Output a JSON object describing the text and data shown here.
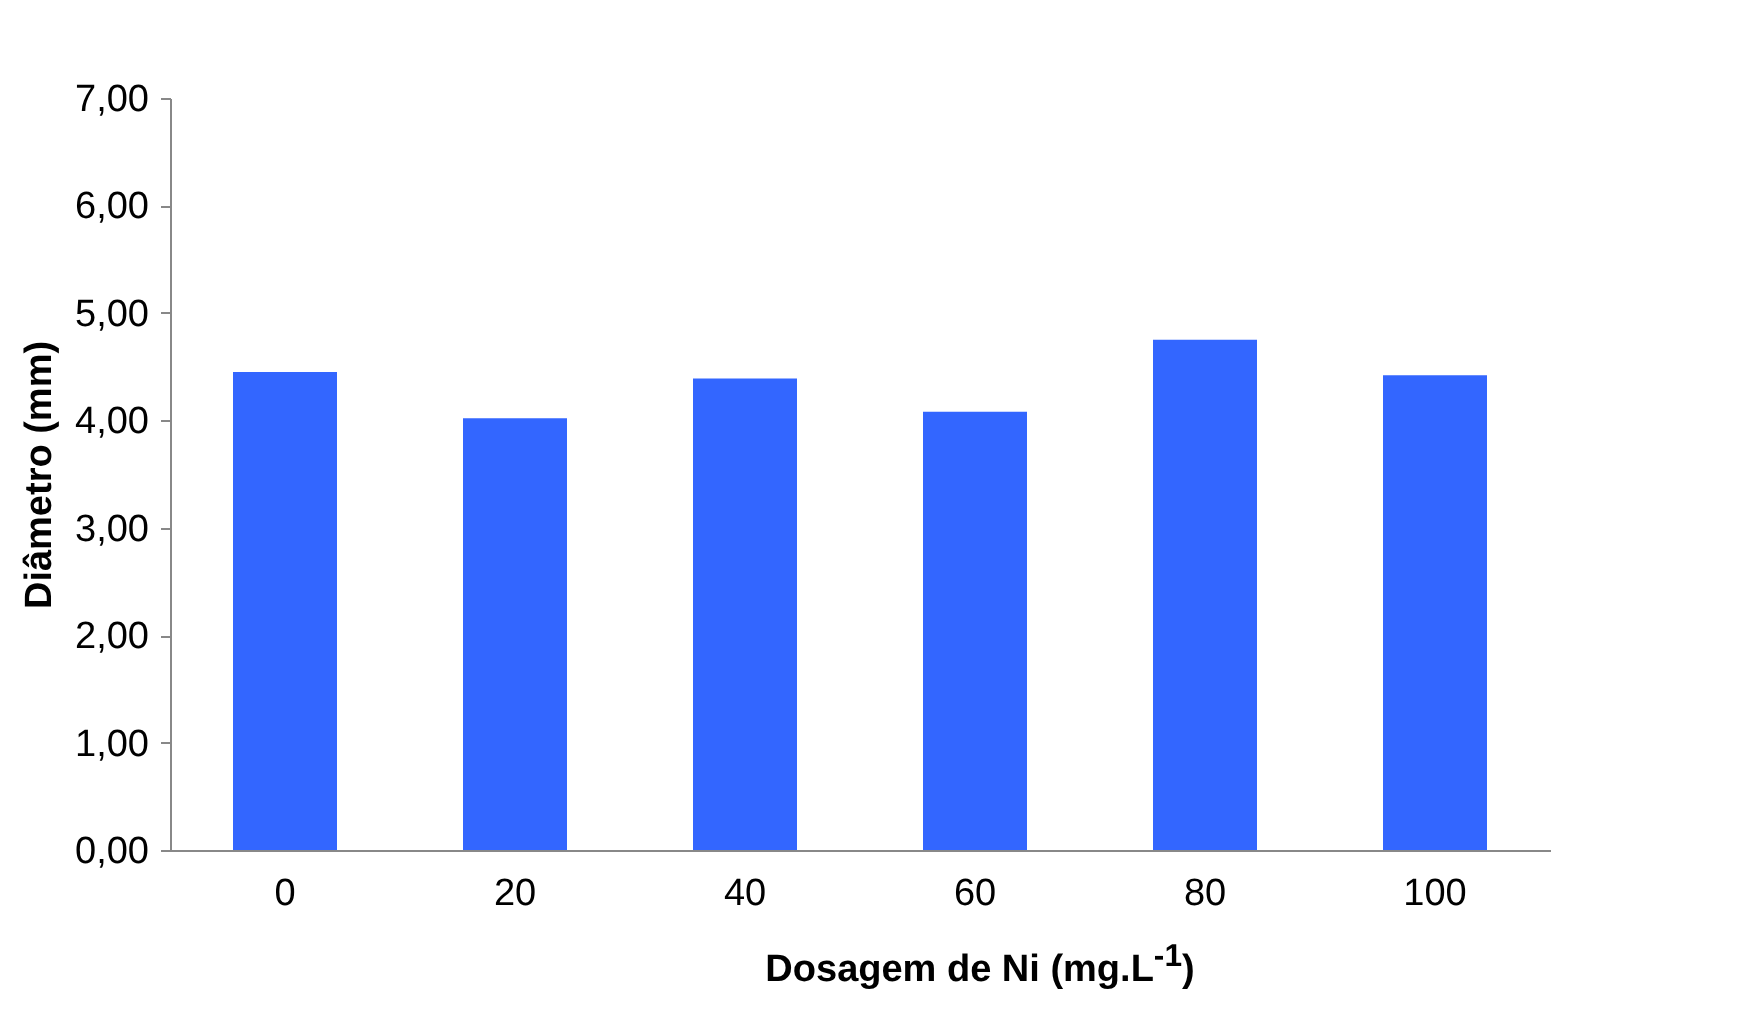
{
  "chart_data": {
    "type": "bar",
    "xlabel": "Dosagem de Ni (mg.L$^{-1}$)",
    "ylabel": "Diâmetro (mm)",
    "categories": [
      "0",
      "20",
      "40",
      "60",
      "80",
      "100"
    ],
    "values": [
      4.45,
      4.02,
      4.39,
      4.08,
      4.75,
      4.42
    ],
    "color": "#3366ff",
    "ylim": [
      0,
      7
    ],
    "yticks": [
      {
        "value": 0,
        "label": "0,00"
      },
      {
        "value": 1,
        "label": "1,00"
      },
      {
        "value": 2,
        "label": "2,00"
      },
      {
        "value": 3,
        "label": "3,00"
      },
      {
        "value": 4,
        "label": "4,00"
      },
      {
        "value": 5,
        "label": "5,00"
      },
      {
        "value": 6,
        "label": "6,00"
      },
      {
        "value": 7,
        "label": "7,00"
      }
    ],
    "grid": false
  }
}
